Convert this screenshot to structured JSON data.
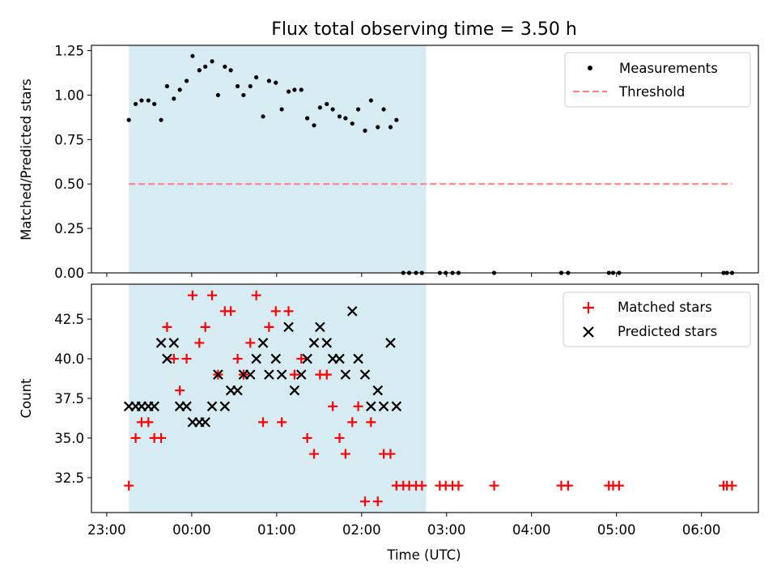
{
  "chart_data": {
    "type": "scatter",
    "title": "Flux total observing time = 3.50 h",
    "xlabel": "Time (UTC)",
    "x_unit": "hours relative to 00:00 UTC",
    "xlim": [
      -1.18,
      6.67
    ],
    "x_ticks": [
      {
        "value": -1,
        "label": "23:00"
      },
      {
        "value": 0,
        "label": "00:00"
      },
      {
        "value": 1,
        "label": "01:00"
      },
      {
        "value": 2,
        "label": "02:00"
      },
      {
        "value": 3,
        "label": "03:00"
      },
      {
        "value": 4,
        "label": "04:00"
      },
      {
        "value": 5,
        "label": "05:00"
      },
      {
        "value": 6,
        "label": "06:00"
      }
    ],
    "shaded_region": {
      "x_start": -0.74,
      "x_end": 2.76,
      "color": "#add8e6"
    },
    "x": [
      -0.74,
      -0.66,
      -0.59,
      -0.51,
      -0.44,
      -0.36,
      -0.29,
      -0.21,
      -0.14,
      -0.06,
      0.01,
      0.09,
      0.16,
      0.24,
      0.31,
      0.39,
      0.46,
      0.54,
      0.61,
      0.69,
      0.76,
      0.84,
      0.91,
      0.99,
      1.06,
      1.14,
      1.21,
      1.29,
      1.36,
      1.44,
      1.51,
      1.59,
      1.66,
      1.74,
      1.81,
      1.89,
      1.96,
      2.04,
      2.11,
      2.19,
      2.26,
      2.34,
      2.41,
      2.49,
      2.56,
      2.64,
      2.71,
      2.92,
      2.99,
      3.07,
      3.14,
      3.56,
      4.35,
      4.43,
      4.91,
      4.96,
      5.03,
      6.26,
      6.3,
      6.36
    ],
    "panels": [
      {
        "ylabel": "Matched/Predicted stars",
        "ylim": [
          0,
          1.28
        ],
        "y_ticks": [
          "0.00",
          "0.25",
          "0.50",
          "0.75",
          "1.00",
          "1.25"
        ],
        "series": [
          {
            "name": "Measurements",
            "marker": "dot",
            "color": "#000000",
            "values": [
              0.86,
              0.95,
              0.97,
              0.97,
              0.95,
              0.86,
              1.05,
              0.98,
              1.03,
              1.08,
              1.22,
              1.14,
              1.16,
              1.19,
              1.0,
              1.16,
              1.14,
              1.05,
              1.0,
              1.05,
              1.1,
              0.88,
              1.08,
              1.07,
              0.92,
              1.02,
              1.03,
              1.03,
              0.87,
              0.83,
              0.93,
              0.95,
              0.92,
              0.88,
              0.87,
              0.84,
              0.92,
              0.8,
              0.97,
              0.82,
              0.92,
              0.82,
              0.86,
              0,
              0,
              0,
              0,
              0,
              0,
              0,
              0,
              0,
              0,
              0,
              0,
              0,
              0,
              0,
              0,
              0
            ]
          },
          {
            "name": "Threshold",
            "style": "dashed",
            "color": "#ff7f7f",
            "y": 0.5,
            "x_range": [
              -0.74,
              6.36
            ]
          }
        ],
        "legend": "top-right"
      },
      {
        "ylabel": "Count",
        "ylim": [
          30.3,
          44.7
        ],
        "y_ticks": [
          "32.5",
          "35.0",
          "37.5",
          "40.0",
          "42.5"
        ],
        "series": [
          {
            "name": "Matched stars",
            "marker": "plus",
            "color": "#ff0000",
            "values": [
              32,
              35,
              36,
              36,
              35,
              35,
              42,
              40,
              38,
              40,
              44,
              41,
              42,
              44,
              39,
              43,
              43,
              40,
              39,
              41,
              44,
              36,
              42,
              43,
              36,
              43,
              39,
              40,
              35,
              34,
              39,
              39,
              37,
              35,
              34,
              36,
              37,
              31,
              36,
              31,
              34,
              34,
              32,
              32,
              32,
              32,
              32,
              32,
              32,
              32,
              32,
              32,
              32,
              32,
              32,
              32,
              32,
              32,
              32,
              32
            ]
          },
          {
            "name": "Predicted stars",
            "marker": "x",
            "color": "#000000",
            "values": [
              37,
              37,
              37,
              37,
              37,
              41,
              40,
              41,
              37,
              37,
              36,
              36,
              36,
              37,
              39,
              37,
              38,
              38,
              39,
              39,
              40,
              41,
              39,
              40,
              39,
              42,
              38,
              39,
              40,
              41,
              42,
              41,
              40,
              40,
              39,
              43,
              40,
              39,
              37,
              38,
              37,
              41,
              37
            ]
          }
        ],
        "legend": "top-right"
      }
    ]
  }
}
